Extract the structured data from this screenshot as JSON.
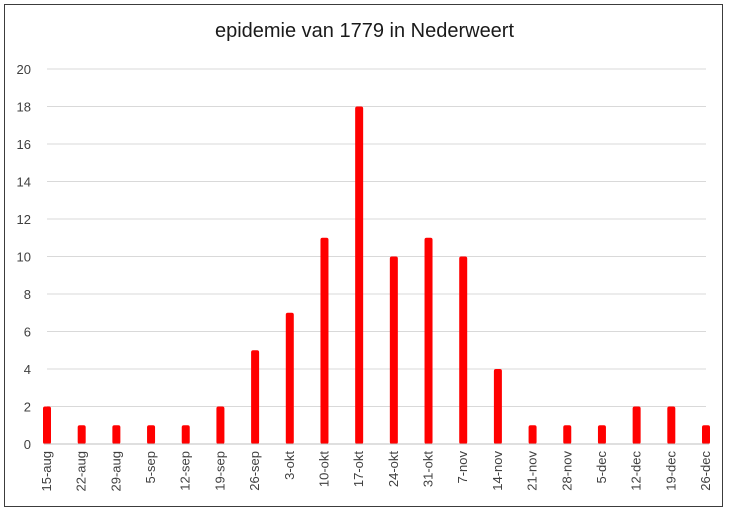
{
  "chart_data": {
    "type": "bar",
    "title": "epidemie van 1779 in Nederweert",
    "xlabel": "",
    "ylabel": "",
    "ylim": [
      0,
      20
    ],
    "yticks": [
      0,
      2,
      4,
      6,
      8,
      10,
      12,
      14,
      16,
      18,
      20
    ],
    "grid": true,
    "bar_color": "#ff0000",
    "categories": [
      "15-aug",
      "22-aug",
      "29-aug",
      "5-sep",
      "12-sep",
      "19-sep",
      "26-sep",
      "3-okt",
      "10-okt",
      "17-okt",
      "24-okt",
      "31-okt",
      "7-nov",
      "14-nov",
      "21-nov",
      "28-nov",
      "5-dec",
      "12-dec",
      "19-dec",
      "26-dec"
    ],
    "values": [
      2,
      1,
      1,
      1,
      1,
      2,
      5,
      7,
      11,
      18,
      10,
      11,
      10,
      4,
      1,
      1,
      1,
      2,
      2,
      1
    ]
  }
}
